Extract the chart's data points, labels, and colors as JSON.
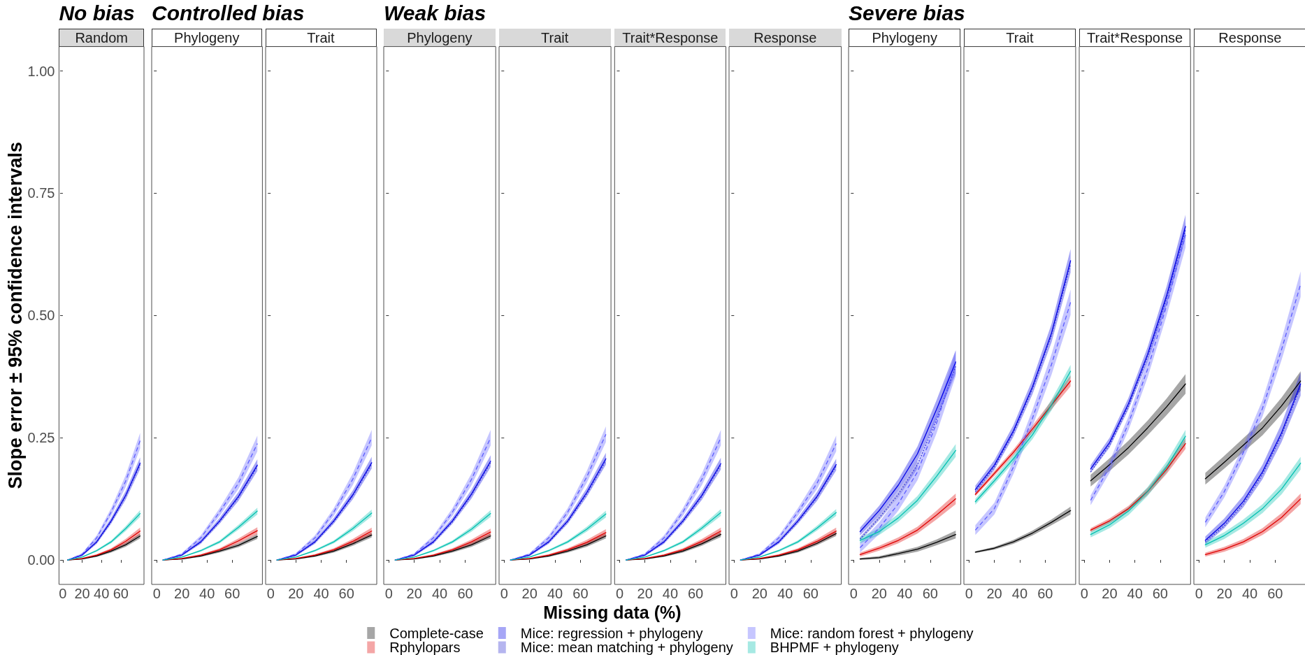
{
  "chart_data": [
    {
      "type": "line",
      "title": "No bias",
      "subtitle": "Random",
      "ylabel": "Slope error ± 95% confidence intervals",
      "x": [
        5,
        20,
        35,
        50,
        65,
        80
      ],
      "xlim": [
        -4,
        84
      ],
      "xticks": [
        0,
        20,
        40,
        60
      ],
      "ylim": [
        -0.05,
        1.05
      ],
      "yticks": [
        {
          "value": 0,
          "label": "0.00"
        },
        {
          "value": 0.25,
          "label": "0.25"
        },
        {
          "value": 0.5,
          "label": "0.50"
        },
        {
          "value": 0.75,
          "label": "0.75"
        },
        {
          "value": 1,
          "label": "1.00"
        }
      ],
      "series": [
        {
          "color": "#000000",
          "line_style": "solid",
          "values": [
            0,
            0.002,
            0.008,
            0.018,
            0.031,
            0.049
          ],
          "lower": [
            0,
            0.001,
            0.006,
            0.015,
            0.027,
            0.044
          ],
          "upper": [
            0,
            0.003,
            0.01,
            0.021,
            0.035,
            0.054
          ]
        },
        {
          "color": "#e00000",
          "line_style": "solid",
          "values": [
            0,
            0.003,
            0.01,
            0.021,
            0.038,
            0.059
          ],
          "lower": [
            0,
            0.002,
            0.008,
            0.018,
            0.033,
            0.052
          ],
          "upper": [
            0,
            0.004,
            0.012,
            0.024,
            0.043,
            0.066
          ]
        },
        {
          "color": "#0000e6",
          "line_style": "solid",
          "values": [
            0,
            0.01,
            0.037,
            0.08,
            0.132,
            0.198
          ],
          "lower": [
            0,
            0.008,
            0.033,
            0.074,
            0.123,
            0.186
          ],
          "upper": [
            0,
            0.012,
            0.041,
            0.086,
            0.141,
            0.21
          ]
        },
        {
          "color": "#2a2ad0",
          "line_style": "dotted",
          "values": [
            0,
            0.01,
            0.036,
            0.078,
            0.13,
            0.195
          ]
        },
        {
          "color": "#5c5cff",
          "line_style": "dashed",
          "values": [
            0,
            0.012,
            0.045,
            0.098,
            0.161,
            0.244
          ],
          "lower": [
            0,
            0.01,
            0.04,
            0.09,
            0.149,
            0.228
          ],
          "upper": [
            0,
            0.014,
            0.05,
            0.106,
            0.173,
            0.26
          ]
        },
        {
          "color": "#00c0b0",
          "line_style": "solid",
          "values": [
            0,
            0.006,
            0.019,
            0.037,
            0.064,
            0.095
          ],
          "lower": [
            0,
            0.005,
            0.017,
            0.034,
            0.059,
            0.088
          ],
          "upper": [
            0,
            0.007,
            0.021,
            0.04,
            0.069,
            0.102
          ]
        }
      ]
    },
    {
      "type": "line",
      "title": "Controlled bias",
      "subtitle": "Phylogeny",
      "tick_labels": "x",
      "x": [
        5,
        20,
        35,
        50,
        65,
        80
      ],
      "xlim": [
        -4,
        84
      ],
      "xticks": [
        0,
        20,
        40,
        60
      ],
      "ylim": [
        -0.05,
        1.05
      ],
      "yticks": [
        0,
        0.25,
        0.5,
        0.75,
        1
      ],
      "series": [
        {
          "color": "#000000",
          "line_style": "solid",
          "values": [
            0,
            0.002,
            0.008,
            0.018,
            0.03,
            0.048
          ],
          "lower": [
            0,
            0.001,
            0.006,
            0.015,
            0.026,
            0.043
          ],
          "upper": [
            0,
            0.003,
            0.01,
            0.021,
            0.034,
            0.053
          ]
        },
        {
          "color": "#e00000",
          "line_style": "solid",
          "values": [
            0,
            0.003,
            0.01,
            0.021,
            0.039,
            0.06
          ],
          "lower": [
            0,
            0.002,
            0.008,
            0.018,
            0.034,
            0.053
          ],
          "upper": [
            0,
            0.004,
            0.012,
            0.024,
            0.044,
            0.067
          ]
        },
        {
          "color": "#0000e6",
          "line_style": "solid",
          "values": [
            0,
            0.01,
            0.037,
            0.08,
            0.13,
            0.194
          ],
          "lower": [
            0,
            0.008,
            0.033,
            0.074,
            0.121,
            0.182
          ],
          "upper": [
            0,
            0.012,
            0.041,
            0.086,
            0.139,
            0.206
          ]
        },
        {
          "color": "#2a2ad0",
          "line_style": "dotted",
          "values": [
            0,
            0.01,
            0.036,
            0.078,
            0.128,
            0.191
          ]
        },
        {
          "color": "#5c5cff",
          "line_style": "dashed",
          "values": [
            0,
            0.012,
            0.045,
            0.098,
            0.157,
            0.238
          ],
          "lower": [
            0,
            0.01,
            0.04,
            0.09,
            0.145,
            0.222
          ],
          "upper": [
            0,
            0.014,
            0.05,
            0.106,
            0.169,
            0.254
          ]
        },
        {
          "color": "#00c0b0",
          "line_style": "solid",
          "values": [
            0,
            0.006,
            0.019,
            0.037,
            0.067,
            0.1
          ],
          "lower": [
            0,
            0.005,
            0.017,
            0.034,
            0.062,
            0.093
          ],
          "upper": [
            0,
            0.007,
            0.021,
            0.04,
            0.072,
            0.107
          ]
        }
      ]
    },
    {
      "type": "line",
      "subtitle": "Trait",
      "tick_labels": "x",
      "x": [
        5,
        20,
        35,
        50,
        65,
        80
      ],
      "xlim": [
        -4,
        84
      ],
      "xticks": [
        0,
        20,
        40,
        60
      ],
      "ylim": [
        -0.05,
        1.05
      ],
      "yticks": [
        0,
        0.25,
        0.5,
        0.75,
        1
      ],
      "series": [
        {
          "color": "#000000",
          "line_style": "solid",
          "values": [
            0,
            0.002,
            0.008,
            0.018,
            0.033,
            0.051
          ],
          "lower": [
            0,
            0.001,
            0.006,
            0.015,
            0.029,
            0.046
          ],
          "upper": [
            0,
            0.003,
            0.01,
            0.021,
            0.037,
            0.056
          ]
        },
        {
          "color": "#e00000",
          "line_style": "solid",
          "values": [
            0,
            0.003,
            0.01,
            0.021,
            0.038,
            0.059
          ],
          "lower": [
            0,
            0.002,
            0.008,
            0.018,
            0.033,
            0.052
          ],
          "upper": [
            0,
            0.004,
            0.012,
            0.024,
            0.043,
            0.066
          ]
        },
        {
          "color": "#0000e6",
          "line_style": "solid",
          "values": [
            0,
            0.01,
            0.037,
            0.08,
            0.133,
            0.199
          ],
          "lower": [
            0,
            0.008,
            0.033,
            0.074,
            0.124,
            0.187
          ],
          "upper": [
            0,
            0.012,
            0.041,
            0.086,
            0.142,
            0.211
          ]
        },
        {
          "color": "#2a2ad0",
          "line_style": "dotted",
          "values": [
            0,
            0.01,
            0.036,
            0.078,
            0.131,
            0.196
          ]
        },
        {
          "color": "#5c5cff",
          "line_style": "dashed",
          "values": [
            0,
            0.012,
            0.045,
            0.098,
            0.165,
            0.25
          ],
          "lower": [
            0,
            0.01,
            0.04,
            0.09,
            0.153,
            0.234
          ],
          "upper": [
            0,
            0.014,
            0.05,
            0.106,
            0.177,
            0.266
          ]
        },
        {
          "color": "#00c0b0",
          "line_style": "solid",
          "values": [
            0,
            0.006,
            0.019,
            0.037,
            0.064,
            0.096
          ],
          "lower": [
            0,
            0.005,
            0.017,
            0.034,
            0.059,
            0.089
          ],
          "upper": [
            0,
            0.007,
            0.021,
            0.04,
            0.069,
            0.103
          ]
        }
      ]
    },
    {
      "type": "line",
      "title": "Weak bias",
      "subtitle": "Phylogeny",
      "tick_labels": "x",
      "x": [
        5,
        20,
        35,
        50,
        65,
        80
      ],
      "xlim": [
        -4,
        84
      ],
      "xticks": [
        0,
        20,
        40,
        60
      ],
      "ylim": [
        -0.05,
        1.05
      ],
      "yticks": [
        0,
        0.25,
        0.5,
        0.75,
        1
      ],
      "series": [
        {
          "color": "#000000",
          "line_style": "solid",
          "values": [
            0,
            0.002,
            0.008,
            0.018,
            0.031,
            0.049
          ],
          "lower": [
            0,
            0.001,
            0.006,
            0.015,
            0.027,
            0.044
          ],
          "upper": [
            0,
            0.003,
            0.01,
            0.021,
            0.035,
            0.054
          ]
        },
        {
          "color": "#e00000",
          "line_style": "solid",
          "values": [
            0,
            0.003,
            0.01,
            0.021,
            0.037,
            0.057
          ],
          "lower": [
            0,
            0.002,
            0.008,
            0.018,
            0.032,
            0.05
          ],
          "upper": [
            0,
            0.004,
            0.012,
            0.024,
            0.042,
            0.064
          ]
        },
        {
          "color": "#0000e6",
          "line_style": "solid",
          "values": [
            0,
            0.01,
            0.037,
            0.08,
            0.135,
            0.202
          ],
          "lower": [
            0,
            0.008,
            0.033,
            0.074,
            0.126,
            0.19
          ],
          "upper": [
            0,
            0.012,
            0.041,
            0.086,
            0.144,
            0.214
          ]
        },
        {
          "color": "#2a2ad0",
          "line_style": "dotted",
          "values": [
            0,
            0.01,
            0.036,
            0.078,
            0.133,
            0.199
          ]
        },
        {
          "color": "#5c5cff",
          "line_style": "dashed",
          "values": [
            0,
            0.012,
            0.045,
            0.098,
            0.165,
            0.25
          ],
          "lower": [
            0,
            0.01,
            0.04,
            0.09,
            0.153,
            0.234
          ],
          "upper": [
            0,
            0.014,
            0.05,
            0.106,
            0.177,
            0.266
          ]
        },
        {
          "color": "#00c0b0",
          "line_style": "solid",
          "values": [
            0,
            0.006,
            0.019,
            0.037,
            0.063,
            0.095
          ],
          "lower": [
            0,
            0.005,
            0.017,
            0.034,
            0.058,
            0.088
          ],
          "upper": [
            0,
            0.007,
            0.021,
            0.04,
            0.068,
            0.102
          ]
        }
      ]
    },
    {
      "type": "line",
      "subtitle": "Trait",
      "tick_labels": "x",
      "x": [
        5,
        20,
        35,
        50,
        65,
        80
      ],
      "xlim": [
        -4,
        84
      ],
      "xticks": [
        0,
        20,
        40,
        60
      ],
      "ylim": [
        -0.05,
        1.05
      ],
      "yticks": [
        0,
        0.25,
        0.5,
        0.75,
        1
      ],
      "series": [
        {
          "color": "#000000",
          "line_style": "solid",
          "values": [
            0,
            0.002,
            0.008,
            0.018,
            0.031,
            0.049
          ],
          "lower": [
            0,
            0.001,
            0.006,
            0.015,
            0.027,
            0.044
          ],
          "upper": [
            0,
            0.003,
            0.01,
            0.021,
            0.035,
            0.054
          ]
        },
        {
          "color": "#e00000",
          "line_style": "solid",
          "values": [
            0,
            0.003,
            0.01,
            0.021,
            0.036,
            0.056
          ],
          "lower": [
            0,
            0.002,
            0.008,
            0.018,
            0.031,
            0.049
          ],
          "upper": [
            0,
            0.004,
            0.012,
            0.024,
            0.041,
            0.063
          ]
        },
        {
          "color": "#0000e6",
          "line_style": "solid",
          "values": [
            0,
            0.01,
            0.037,
            0.08,
            0.138,
            0.207
          ],
          "lower": [
            0,
            0.008,
            0.033,
            0.074,
            0.129,
            0.195
          ],
          "upper": [
            0,
            0.012,
            0.041,
            0.086,
            0.147,
            0.219
          ]
        },
        {
          "color": "#2a2ad0",
          "line_style": "dotted",
          "values": [
            0,
            0.01,
            0.036,
            0.078,
            0.135,
            0.203
          ]
        },
        {
          "color": "#5c5cff",
          "line_style": "dashed",
          "values": [
            0,
            0.012,
            0.045,
            0.098,
            0.17,
            0.257
          ],
          "lower": [
            0,
            0.01,
            0.04,
            0.09,
            0.158,
            0.241
          ],
          "upper": [
            0,
            0.014,
            0.05,
            0.106,
            0.182,
            0.273
          ]
        },
        {
          "color": "#00c0b0",
          "line_style": "solid",
          "values": [
            0,
            0.006,
            0.019,
            0.037,
            0.063,
            0.094
          ],
          "lower": [
            0,
            0.005,
            0.017,
            0.034,
            0.058,
            0.087
          ],
          "upper": [
            0,
            0.007,
            0.021,
            0.04,
            0.068,
            0.101
          ]
        }
      ]
    },
    {
      "type": "line",
      "subtitle": "Trait*Response",
      "xlabel": "Missing data (%)",
      "legend": "bottom",
      "tick_labels": "x",
      "x": [
        5,
        20,
        35,
        50,
        65,
        80
      ],
      "xlim": [
        -4,
        84
      ],
      "xticks": [
        0,
        20,
        40,
        60
      ],
      "ylim": [
        -0.05,
        1.05
      ],
      "yticks": [
        0,
        0.25,
        0.5,
        0.75,
        1
      ],
      "series": [
        {
          "name": "Complete-case",
          "color": "#000000",
          "line_style": "solid",
          "values": [
            0,
            0.002,
            0.008,
            0.018,
            0.033,
            0.052
          ],
          "lower": [
            0,
            0.001,
            0.006,
            0.015,
            0.029,
            0.047
          ],
          "upper": [
            0,
            0.003,
            0.01,
            0.021,
            0.037,
            0.057
          ]
        },
        {
          "name": "Rphylopars",
          "color": "#e00000",
          "line_style": "solid",
          "values": [
            0,
            0.003,
            0.01,
            0.021,
            0.038,
            0.059
          ],
          "lower": [
            0,
            0.002,
            0.008,
            0.018,
            0.033,
            0.052
          ],
          "upper": [
            0,
            0.004,
            0.012,
            0.024,
            0.043,
            0.066
          ]
        },
        {
          "name": "Mice: regression + phylogeny",
          "color": "#0000e6",
          "line_style": "solid",
          "values": [
            0,
            0.01,
            0.037,
            0.08,
            0.132,
            0.197
          ],
          "lower": [
            0,
            0.008,
            0.033,
            0.074,
            0.123,
            0.185
          ],
          "upper": [
            0,
            0.012,
            0.041,
            0.086,
            0.141,
            0.209
          ]
        },
        {
          "name": "Mice: mean matching + phylogeny",
          "color": "#2a2ad0",
          "line_style": "dotted",
          "values": [
            0,
            0.01,
            0.036,
            0.078,
            0.13,
            0.194
          ]
        },
        {
          "name": "Mice: random forest + phylogeny",
          "color": "#5c5cff",
          "line_style": "dashed",
          "values": [
            0,
            0.012,
            0.045,
            0.098,
            0.165,
            0.25
          ],
          "lower": [
            0,
            0.01,
            0.04,
            0.09,
            0.153,
            0.234
          ],
          "upper": [
            0,
            0.014,
            0.05,
            0.106,
            0.177,
            0.266
          ]
        },
        {
          "name": "BHPMF + phylogeny",
          "color": "#00c0b0",
          "line_style": "solid",
          "values": [
            0,
            0.006,
            0.019,
            0.037,
            0.065,
            0.097
          ],
          "lower": [
            0,
            0.005,
            0.017,
            0.034,
            0.06,
            0.09
          ],
          "upper": [
            0,
            0.007,
            0.021,
            0.04,
            0.07,
            0.104
          ]
        }
      ]
    },
    {
      "type": "line",
      "subtitle": "Response",
      "tick_labels": "x",
      "x": [
        5,
        20,
        35,
        50,
        65,
        80
      ],
      "xlim": [
        -4,
        84
      ],
      "xticks": [
        0,
        20,
        40,
        60
      ],
      "ylim": [
        -0.05,
        1.05
      ],
      "yticks": [
        0,
        0.25,
        0.5,
        0.75,
        1
      ],
      "series": [
        {
          "color": "#000000",
          "line_style": "solid",
          "values": [
            0,
            0.002,
            0.008,
            0.018,
            0.034,
            0.054
          ],
          "lower": [
            0,
            0.001,
            0.006,
            0.015,
            0.03,
            0.049
          ],
          "upper": [
            0,
            0.003,
            0.01,
            0.021,
            0.038,
            0.059
          ]
        },
        {
          "color": "#e00000",
          "line_style": "solid",
          "values": [
            0,
            0.003,
            0.01,
            0.021,
            0.038,
            0.059
          ],
          "lower": [
            0,
            0.002,
            0.008,
            0.018,
            0.033,
            0.052
          ],
          "upper": [
            0,
            0.004,
            0.012,
            0.024,
            0.043,
            0.066
          ]
        },
        {
          "color": "#0000e6",
          "line_style": "solid",
          "values": [
            0,
            0.01,
            0.037,
            0.08,
            0.13,
            0.195
          ],
          "lower": [
            0,
            0.008,
            0.033,
            0.074,
            0.121,
            0.183
          ],
          "upper": [
            0,
            0.012,
            0.041,
            0.086,
            0.139,
            0.207
          ]
        },
        {
          "color": "#2a2ad0",
          "line_style": "dotted",
          "values": [
            0,
            0.01,
            0.036,
            0.078,
            0.128,
            0.192
          ]
        },
        {
          "color": "#5c5cff",
          "line_style": "dashed",
          "values": [
            0,
            0.012,
            0.045,
            0.098,
            0.157,
            0.238
          ],
          "lower": [
            0,
            0.01,
            0.04,
            0.09,
            0.145,
            0.222
          ],
          "upper": [
            0,
            0.014,
            0.05,
            0.106,
            0.169,
            0.254
          ]
        },
        {
          "color": "#00c0b0",
          "line_style": "solid",
          "values": [
            0,
            0.006,
            0.019,
            0.037,
            0.065,
            0.097
          ],
          "lower": [
            0,
            0.005,
            0.017,
            0.034,
            0.06,
            0.09
          ],
          "upper": [
            0,
            0.007,
            0.021,
            0.04,
            0.07,
            0.104
          ]
        }
      ]
    },
    {
      "type": "line",
      "title": "Severe bias",
      "subtitle": "Phylogeny",
      "tick_labels": "x",
      "x": [
        5,
        20,
        35,
        50,
        65,
        80
      ],
      "xlim": [
        -4,
        84
      ],
      "xticks": [
        0,
        20,
        40,
        60
      ],
      "ylim": [
        -0.05,
        1.05
      ],
      "yticks": [
        0,
        0.25,
        0.5,
        0.75,
        1
      ],
      "series": [
        {
          "color": "#000000",
          "line_style": "solid",
          "values": [
            0.002,
            0.005,
            0.013,
            0.022,
            0.036,
            0.052
          ],
          "lower": [
            0,
            0.002,
            0.009,
            0.017,
            0.03,
            0.044
          ],
          "upper": [
            0.004,
            0.008,
            0.017,
            0.027,
            0.042,
            0.06
          ]
        },
        {
          "color": "#e00000",
          "line_style": "solid",
          "values": [
            0.011,
            0.024,
            0.04,
            0.061,
            0.092,
            0.125
          ],
          "lower": [
            0.007,
            0.019,
            0.034,
            0.054,
            0.083,
            0.114
          ],
          "upper": [
            0.015,
            0.029,
            0.046,
            0.068,
            0.101,
            0.136
          ]
        },
        {
          "color": "#0000e6",
          "line_style": "solid",
          "values": [
            0.058,
            0.101,
            0.153,
            0.217,
            0.308,
            0.405
          ],
          "lower": [
            0.05,
            0.091,
            0.141,
            0.202,
            0.289,
            0.381
          ],
          "upper": [
            0.066,
            0.111,
            0.165,
            0.232,
            0.327,
            0.429
          ]
        },
        {
          "color": "#2a2ad0",
          "line_style": "dotted",
          "values": [
            0.043,
            0.086,
            0.134,
            0.195,
            0.287,
            0.396
          ],
          "lower": [
            0.039,
            0.081,
            0.128,
            0.187,
            null,
            null
          ],
          "upper": [
            0.047,
            0.091,
            0.14,
            0.203,
            null,
            null
          ]
        },
        {
          "color": "#5c5cff",
          "line_style": "dashed",
          "values": [
            0.025,
            0.065,
            0.115,
            0.18,
            0.28,
            0.402
          ],
          "lower": [
            0.015,
            0.053,
            0.101,
            0.163,
            0.259,
            0.376
          ],
          "upper": [
            0.035,
            0.077,
            0.129,
            0.197,
            0.301,
            0.428
          ]
        },
        {
          "color": "#00c0b0",
          "line_style": "solid",
          "values": [
            0.04,
            0.058,
            0.086,
            0.122,
            0.171,
            0.224
          ],
          "lower": [
            0.034,
            0.051,
            0.078,
            0.113,
            0.16,
            0.211
          ],
          "upper": [
            0.046,
            0.065,
            0.094,
            0.131,
            0.182,
            0.237
          ]
        }
      ]
    },
    {
      "type": "line",
      "subtitle": "Trait",
      "tick_labels": "x",
      "x": [
        5,
        20,
        35,
        50,
        65,
        80
      ],
      "xlim": [
        -4,
        84
      ],
      "xticks": [
        0,
        20,
        40,
        60
      ],
      "ylim": [
        -0.05,
        1.05
      ],
      "yticks": [
        0,
        0.25,
        0.5,
        0.75,
        1
      ],
      "series": [
        {
          "color": "#000000",
          "line_style": "solid",
          "values": [
            0.016,
            0.024,
            0.037,
            0.055,
            0.077,
            0.101
          ],
          "lower": [
            0.014,
            0.021,
            0.033,
            0.05,
            0.071,
            0.093
          ],
          "upper": [
            0.018,
            0.027,
            0.041,
            0.06,
            0.083,
            0.109
          ]
        },
        {
          "color": "#e00000",
          "line_style": "solid",
          "values": [
            0.134,
            0.177,
            0.22,
            0.268,
            0.317,
            0.366
          ],
          "lower": [
            0.13,
            0.172,
            0.214,
            0.261,
            0.308,
            0.355
          ],
          "upper": [
            0.138,
            0.182,
            0.226,
            0.275,
            0.326,
            0.377
          ]
        },
        {
          "color": "#0000e6",
          "line_style": "solid",
          "values": [
            0.144,
            0.194,
            0.264,
            0.354,
            0.464,
            0.612
          ],
          "lower": [
            0.136,
            0.184,
            0.252,
            0.339,
            0.445,
            0.588
          ],
          "upper": [
            0.152,
            0.204,
            0.276,
            0.369,
            0.483,
            0.636
          ]
        },
        {
          "color": "#2a2ad0",
          "line_style": "dotted",
          "values": [
            0.14,
            0.19,
            0.26,
            0.35,
            0.46,
            0.605
          ]
        },
        {
          "color": "#5c5cff",
          "line_style": "dashed",
          "values": [
            0.061,
            0.105,
            0.19,
            0.29,
            0.4,
            0.527
          ],
          "lower": [
            0.051,
            0.093,
            0.176,
            0.273,
            0.379,
            0.501
          ],
          "upper": [
            0.071,
            0.117,
            0.204,
            0.307,
            0.421,
            0.553
          ]
        },
        {
          "color": "#00c0b0",
          "line_style": "solid",
          "values": [
            0.119,
            0.162,
            0.207,
            0.256,
            0.317,
            0.386
          ],
          "lower": [
            0.113,
            0.155,
            0.199,
            0.247,
            0.306,
            0.373
          ],
          "upper": [
            0.125,
            0.169,
            0.215,
            0.265,
            0.328,
            0.399
          ]
        }
      ]
    },
    {
      "type": "line",
      "subtitle": "Trait*Response",
      "tick_labels": "x",
      "x": [
        5,
        20,
        35,
        50,
        65,
        80
      ],
      "xlim": [
        -4,
        84
      ],
      "xticks": [
        0,
        20,
        40,
        60
      ],
      "ylim": [
        -0.05,
        1.05
      ],
      "yticks": [
        0,
        0.25,
        0.5,
        0.75,
        1
      ],
      "series": [
        {
          "color": "#000000",
          "line_style": "solid",
          "values": [
            0.162,
            0.195,
            0.23,
            0.27,
            0.313,
            0.36
          ],
          "lower": [
            0.15,
            0.182,
            0.216,
            0.255,
            0.296,
            0.34
          ],
          "upper": [
            0.174,
            0.208,
            0.244,
            0.285,
            0.33,
            0.38
          ]
        },
        {
          "color": "#e00000",
          "line_style": "solid",
          "values": [
            0.061,
            0.08,
            0.105,
            0.14,
            0.185,
            0.238
          ],
          "lower": [
            0.057,
            0.075,
            0.099,
            0.133,
            0.176,
            0.227
          ],
          "upper": [
            0.065,
            0.085,
            0.111,
            0.147,
            0.194,
            0.249
          ]
        },
        {
          "color": "#0000e6",
          "line_style": "solid",
          "values": [
            0.186,
            0.24,
            0.32,
            0.42,
            0.54,
            0.682
          ],
          "lower": [
            0.178,
            0.23,
            0.308,
            0.405,
            0.521,
            0.658
          ],
          "upper": [
            0.194,
            0.25,
            0.332,
            0.435,
            0.559,
            0.706
          ]
        },
        {
          "color": "#2a2ad0",
          "line_style": "dotted",
          "values": [
            0.18,
            0.235,
            0.315,
            0.415,
            0.535,
            0.675
          ]
        },
        {
          "color": "#5c5cff",
          "line_style": "dashed",
          "values": [
            0.122,
            0.19,
            0.28,
            0.39,
            0.52,
            0.665
          ],
          "lower": [
            0.112,
            0.178,
            0.266,
            0.373,
            0.499,
            0.639
          ],
          "upper": [
            0.132,
            0.202,
            0.294,
            0.407,
            0.541,
            0.691
          ]
        },
        {
          "color": "#00c0b0",
          "line_style": "solid",
          "values": [
            0.052,
            0.072,
            0.1,
            0.14,
            0.19,
            0.253
          ],
          "lower": [
            0.046,
            0.065,
            0.092,
            0.131,
            0.179,
            0.24
          ],
          "upper": [
            0.058,
            0.079,
            0.108,
            0.149,
            0.201,
            0.266
          ]
        }
      ]
    },
    {
      "type": "line",
      "subtitle": "Response",
      "tick_labels": "x",
      "x": [
        5,
        20,
        35,
        50,
        65,
        80
      ],
      "xlim": [
        -4,
        84
      ],
      "xticks": [
        0,
        20,
        40,
        60
      ],
      "ylim": [
        -0.05,
        1.05
      ],
      "yticks": [
        0,
        0.25,
        0.5,
        0.75,
        1
      ],
      "series": [
        {
          "color": "#000000",
          "line_style": "solid",
          "values": [
            0.166,
            0.2,
            0.235,
            0.27,
            0.315,
            0.366
          ],
          "lower": [
            0.154,
            0.187,
            0.221,
            0.255,
            0.298,
            0.346
          ],
          "upper": [
            0.178,
            0.213,
            0.249,
            0.285,
            0.332,
            0.386
          ]
        },
        {
          "color": "#e00000",
          "line_style": "solid",
          "values": [
            0.011,
            0.022,
            0.037,
            0.058,
            0.087,
            0.125
          ],
          "lower": [
            0.007,
            0.017,
            0.031,
            0.051,
            0.078,
            0.114
          ],
          "upper": [
            0.015,
            0.027,
            0.043,
            0.065,
            0.096,
            0.136
          ]
        },
        {
          "color": "#0000e6",
          "line_style": "solid",
          "values": [
            0.04,
            0.075,
            0.12,
            0.18,
            0.26,
            0.36
          ],
          "lower": [
            0.032,
            0.065,
            0.108,
            0.165,
            0.241,
            0.336
          ],
          "upper": [
            0.048,
            0.085,
            0.132,
            0.195,
            0.279,
            0.384
          ]
        },
        {
          "color": "#2a2ad0",
          "line_style": "dotted",
          "values": [
            0.037,
            0.07,
            0.115,
            0.175,
            0.255,
            0.355
          ]
        },
        {
          "color": "#5c5cff",
          "line_style": "dashed",
          "values": [
            0.077,
            0.14,
            0.22,
            0.31,
            0.43,
            0.564
          ],
          "lower": [
            0.067,
            0.128,
            0.206,
            0.293,
            0.409,
            0.538
          ],
          "upper": [
            0.087,
            0.152,
            0.234,
            0.327,
            0.451,
            0.59
          ]
        },
        {
          "color": "#00c0b0",
          "line_style": "solid",
          "values": [
            0.031,
            0.05,
            0.075,
            0.105,
            0.145,
            0.198
          ],
          "lower": [
            0.025,
            0.043,
            0.067,
            0.096,
            0.134,
            0.185
          ],
          "upper": [
            0.037,
            0.057,
            0.083,
            0.114,
            0.156,
            0.211
          ]
        }
      ]
    }
  ]
}
